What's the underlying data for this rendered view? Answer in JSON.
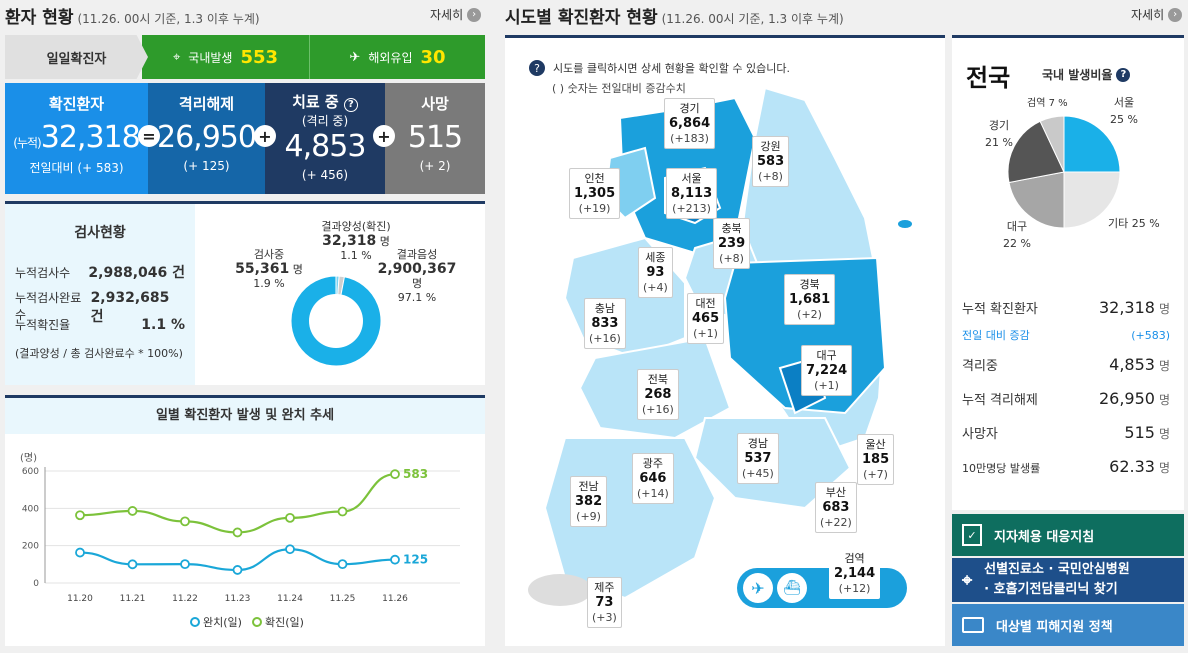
{
  "left_header": {
    "title": "환자 현황",
    "sub": "(11.26. 00시 기준, 1.3 이후 누계)",
    "more": "자세히"
  },
  "daily": {
    "label": "일일확진자",
    "domestic_label": "국내발생",
    "domestic": "553",
    "overseas_label": "해외유입",
    "overseas": "30"
  },
  "stats": {
    "confirmed": {
      "label": "확진환자",
      "prefix": "(누적)",
      "value": "32,318",
      "diff": "전일대비 (+ 583)"
    },
    "released": {
      "label": "격리해제",
      "value": "26,950",
      "diff": "(+ 125)"
    },
    "treating": {
      "label": "치료 중",
      "label2": "(격리 중)",
      "value": "4,853",
      "diff": "(+ 456)"
    },
    "deaths": {
      "label": "사망",
      "value": "515",
      "diff": "(+ 2)"
    }
  },
  "tests": {
    "title": "검사현황",
    "rows": [
      {
        "label": "누적검사수",
        "value": "2,988,046 건"
      },
      {
        "label": "누적검사완료수",
        "value": "2,932,685 건"
      },
      {
        "label": "누적확진율",
        "value": "1.1 %"
      }
    ],
    "note": "(결과양성 / 총 검사완료수 * 100%)",
    "donut": {
      "positive_label": "결과양성(확진)",
      "positive_value": "32,318",
      "positive_unit": "명",
      "positive_pct": "1.1 %",
      "testing_label": "검사중",
      "testing_value": "55,361",
      "testing_unit": "명",
      "testing_pct": "1.9 %",
      "negative_label": "결과음성",
      "negative_value": "2,900,367",
      "negative_unit": "명",
      "negative_pct": "97.1 %",
      "fractions": [
        0.011,
        0.019,
        0.971
      ]
    }
  },
  "trend": {
    "title": "일별 확진환자 발생 및 완치 추세",
    "unit": "(명)",
    "legend_released": "완치(일)",
    "legend_confirmed": "확진(일)"
  },
  "chart_data": {
    "type": "line",
    "title": "일별 확진환자 발생 및 완치 추세",
    "ylabel": "(명)",
    "ylim": [
      0,
      600
    ],
    "yticks": [
      "0",
      "200",
      "400",
      "600"
    ],
    "categories": [
      "11.20",
      "11.21",
      "11.22",
      "11.23",
      "11.24",
      "11.25",
      "11.26"
    ],
    "series": [
      {
        "name": "완치(일)",
        "color": "#1aa7d8",
        "values": [
          163,
          100,
          101,
          70,
          181,
          101,
          125
        ]
      },
      {
        "name": "확진(일)",
        "color": "#7cc23b",
        "values": [
          363,
          386,
          330,
          271,
          349,
          383,
          583
        ]
      }
    ],
    "end_labels": [
      "125",
      "583"
    ],
    "legend": "bottom",
    "grid": true
  },
  "map_header": {
    "title": "시도별 확진환자 현황",
    "sub": "(11.26. 00시 기준, 1.3 이후 누계)",
    "more": "자세히"
  },
  "map_help": {
    "line1": "시도를 클릭하시면 상세 현황을 확인할 수 있습니다.",
    "line2": "( ) 숫자는 전일대비 증감수치"
  },
  "regions": [
    {
      "name": "경기",
      "value": "6,864",
      "diff": "(+183)"
    },
    {
      "name": "강원",
      "value": "583",
      "diff": "(+8)"
    },
    {
      "name": "인천",
      "value": "1,305",
      "diff": "(+19)"
    },
    {
      "name": "서울",
      "value": "8,113",
      "diff": "(+213)"
    },
    {
      "name": "충북",
      "value": "239",
      "diff": "(+8)"
    },
    {
      "name": "세종",
      "value": "93",
      "diff": "(+4)"
    },
    {
      "name": "경북",
      "value": "1,681",
      "diff": "(+2)"
    },
    {
      "name": "대전",
      "value": "465",
      "diff": "(+1)"
    },
    {
      "name": "충남",
      "value": "833",
      "diff": "(+16)"
    },
    {
      "name": "대구",
      "value": "7,224",
      "diff": "(+1)"
    },
    {
      "name": "전북",
      "value": "268",
      "diff": "(+16)"
    },
    {
      "name": "경남",
      "value": "537",
      "diff": "(+45)"
    },
    {
      "name": "울산",
      "value": "185",
      "diff": "(+7)"
    },
    {
      "name": "광주",
      "value": "646",
      "diff": "(+14)"
    },
    {
      "name": "전남",
      "value": "382",
      "diff": "(+9)"
    },
    {
      "name": "부산",
      "value": "683",
      "diff": "(+22)"
    },
    {
      "name": "제주",
      "value": "73",
      "diff": "(+3)"
    },
    {
      "name": "검역",
      "value": "2,144",
      "diff": "(+12)"
    }
  ],
  "national": {
    "title": "전국",
    "ratio_label": "국내 발생비율",
    "pie_labels": [
      {
        "name": "서울",
        "pct": "25 %"
      },
      {
        "name": "기타",
        "pct": "25 %"
      },
      {
        "name": "대구",
        "pct": "22 %"
      },
      {
        "name": "경기",
        "pct": "21 %"
      },
      {
        "name": "검역",
        "pct": "7 %"
      }
    ],
    "pie_fractions": [
      0.25,
      0.25,
      0.22,
      0.21,
      0.07
    ],
    "pie_colors": [
      "#1ab0e8",
      "#e6e6e6",
      "#a6a6a6",
      "#555555",
      "#c9c9c9"
    ],
    "rows": [
      {
        "label": "누적 확진환자",
        "value": "32,318",
        "unit": "명"
      },
      {
        "label": "전일 대비 증감",
        "value": "(+583)",
        "unit": ""
      },
      {
        "label": "격리중",
        "value": "4,853",
        "unit": "명"
      },
      {
        "label": "누적 격리해제",
        "value": "26,950",
        "unit": "명"
      },
      {
        "label": "사망자",
        "value": "515",
        "unit": "명"
      },
      {
        "label": "10만명당 발생률",
        "value": "62.33",
        "unit": "명"
      }
    ]
  },
  "side_buttons": {
    "guide": "지자체용 대응지침",
    "clinic_line1": "선별진료소 · 국민안심병원",
    "clinic_line2": "· 호흡기전담클리닉 찾기",
    "support": "대상별 피해지원 정책"
  }
}
